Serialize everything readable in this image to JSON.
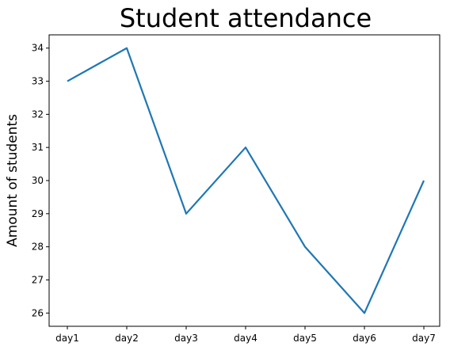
{
  "chart_data": {
    "type": "line",
    "title": "Student attendance",
    "xlabel": "",
    "ylabel": "Amount of students",
    "categories": [
      "day1",
      "day2",
      "day3",
      "day4",
      "day5",
      "day6",
      "day7"
    ],
    "series": [
      {
        "values": [
          33,
          34,
          29,
          31,
          28,
          26,
          30
        ],
        "color": "#1f77b4"
      }
    ],
    "yticks": [
      26,
      27,
      28,
      29,
      30,
      31,
      32,
      33,
      34
    ],
    "ylim": [
      25.6,
      34.4
    ],
    "grid": false,
    "legend": "none"
  }
}
